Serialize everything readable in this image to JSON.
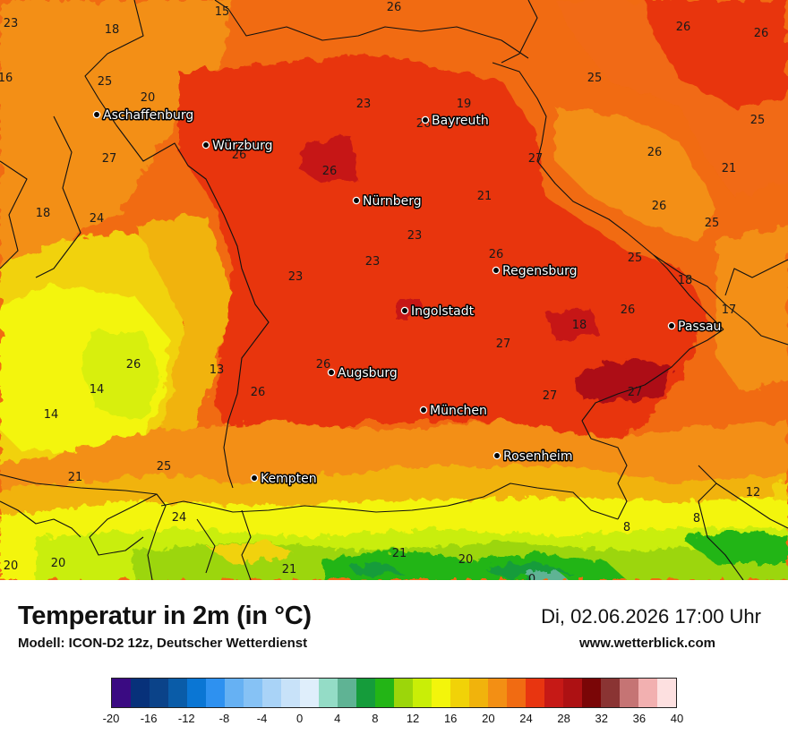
{
  "header": {
    "title": "Temperatur in 2m (in °C)",
    "subtitle": "Modell: ICON-D2 12z, Deutscher Wetterdienst",
    "datetime": "Di, 02.06.2026 17:00 Uhr",
    "website": "www.wetterblick.com"
  },
  "cities": [
    {
      "name": "Aschaffenburg"
    },
    {
      "name": "Würzburg"
    },
    {
      "name": "Bayreuth"
    },
    {
      "name": "Nürnberg"
    },
    {
      "name": "Regensburg"
    },
    {
      "name": "Ingolstadt"
    },
    {
      "name": "Passau"
    },
    {
      "name": "Augsburg"
    },
    {
      "name": "München"
    },
    {
      "name": "Rosenheim"
    },
    {
      "name": "Kempten"
    }
  ],
  "values": [
    "23",
    "18",
    "15",
    "26",
    "26",
    "26",
    "16",
    "25",
    "20",
    "25",
    "23",
    "19",
    "26",
    "25",
    "26",
    "26",
    "26",
    "27",
    "21",
    "27",
    "21",
    "25",
    "18",
    "24",
    "26",
    "23",
    "23",
    "23",
    "26",
    "25",
    "18",
    "17",
    "26",
    "18",
    "27",
    "26",
    "13",
    "26",
    "14",
    "26",
    "27",
    "27",
    "14",
    "21",
    "25",
    "12",
    "24",
    "8",
    "8",
    "21",
    "20",
    "20",
    "20",
    "21",
    "0"
  ],
  "legend": {
    "ticks": [
      "-20",
      "-16",
      "-12",
      "-8",
      "-4",
      "0",
      "4",
      "8",
      "12",
      "16",
      "20",
      "24",
      "28",
      "32",
      "36",
      "40"
    ],
    "colors": [
      "#3a0a82",
      "#07317a",
      "#0b4389",
      "#0a5ca8",
      "#0a76d4",
      "#2e91f0",
      "#66b1f3",
      "#86c2f5",
      "#a9d3f7",
      "#c8e2f9",
      "#dfeefb",
      "#94dcc6",
      "#5fb394",
      "#159c3b",
      "#23b516",
      "#9cd60a",
      "#c9ee07",
      "#f3f50b",
      "#f1d208",
      "#f1b30c",
      "#f38f14",
      "#f16b12",
      "#e83510",
      "#c61916",
      "#ad1113",
      "#7a0607",
      "#8a3433",
      "#c57474",
      "#f2b0b0",
      "#fde0e0"
    ]
  }
}
